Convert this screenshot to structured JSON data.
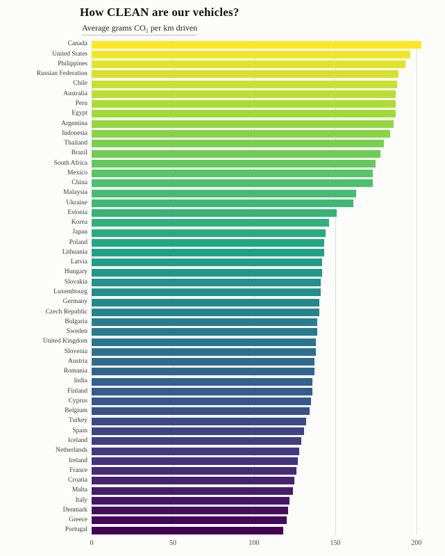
{
  "chart_data": {
    "type": "bar",
    "orientation": "horizontal",
    "title": "How CLEAN are our vehicles?",
    "subtitle": "Average grams CO₂ per km driven",
    "xlabel": "",
    "ylabel": "",
    "x_ticks": [
      0,
      50,
      100,
      150,
      200
    ],
    "xlim": [
      0,
      212
    ],
    "grid": "vertical-lines-on",
    "legend": "none",
    "palette": "viridis",
    "palette_mapped_to": "rank (top=yellow, bottom=dark purple)",
    "viridis_stops": [
      "#440154",
      "#46327E",
      "#365C8D",
      "#277F8E",
      "#1FA187",
      "#4AC16D",
      "#A0DA39",
      "#FDE725"
    ],
    "categories": [
      "Canada",
      "United States",
      "Philippines",
      "Russian Federation",
      "Chile",
      "Australia",
      "Peru",
      "Egypt",
      "Argentina",
      "Indonesia",
      "Thailand",
      "Brazil",
      "South Africa",
      "Mexico",
      "China",
      "Malaysia",
      "Ukraine",
      "Estonia",
      "Korea",
      "Japan",
      "Poland",
      "Lithuania",
      "Latvia",
      "Hungary",
      "Slovakia",
      "Luxembourg",
      "Germany",
      "Czech Republic",
      "Bulgaria",
      "Sweden",
      "United Kingdom",
      "Slovenia",
      "Austria",
      "Romania",
      "India",
      "Finland",
      "Cyprus",
      "Belgium",
      "Turkey",
      "Spain",
      "Iceland",
      "Netherlands",
      "Ireland",
      "France",
      "Croatia",
      "Malta",
      "Italy",
      "Denmark",
      "Greece",
      "Portugal"
    ],
    "values": [
      203,
      196,
      193,
      189,
      188,
      187,
      187,
      187,
      186,
      184,
      180,
      178,
      175,
      173,
      173,
      163,
      161,
      151,
      146,
      144,
      143,
      143,
      142,
      142,
      141,
      141,
      140,
      140,
      139,
      139,
      138,
      138,
      137,
      137,
      136,
      136,
      135,
      134,
      132,
      131,
      129,
      128,
      127,
      126,
      125,
      124,
      122,
      121,
      120,
      118
    ]
  },
  "colors": {
    "background": "#fcfcfa",
    "gridline": "#dedede",
    "label_text": "#3a3a3a",
    "tick_text": "#444444",
    "title_text": "#111111"
  }
}
